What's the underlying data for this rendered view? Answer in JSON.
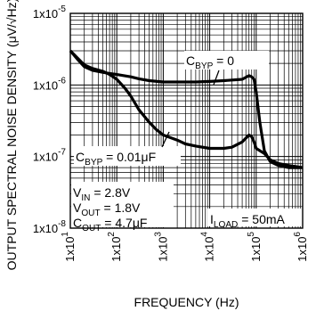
{
  "chart_data": {
    "type": "line",
    "xlabel": "FREQUENCY (Hz)",
    "ylabel": "OUTPUT SPECTRAL NOISE DENSITY (μV/√Hz)",
    "xscale": "log",
    "yscale": "log",
    "xlim": [
      10,
      1000000
    ],
    "ylim": [
      0.01,
      10
    ],
    "grid": true,
    "x_ticks": [
      {
        "base": "1x10",
        "exp": "1"
      },
      {
        "base": "1x10",
        "exp": "2"
      },
      {
        "base": "1x10",
        "exp": "3"
      },
      {
        "base": "1x10",
        "exp": "4"
      },
      {
        "base": "1x10",
        "exp": "5"
      },
      {
        "base": "1x10",
        "exp": "6"
      }
    ],
    "y_ticks": [
      {
        "base": "1x10",
        "exp": "-5"
      },
      {
        "base": "1x10",
        "exp": "-6"
      },
      {
        "base": "1x10",
        "exp": "-7"
      },
      {
        "base": "1x10",
        "exp": "-8"
      }
    ],
    "series": [
      {
        "label": {
          "main": "C",
          "sub": "BYP",
          "rest": " = 0"
        },
        "x": [
          10,
          15,
          20,
          30,
          50,
          70,
          100,
          200,
          300,
          500,
          1000,
          2000,
          5000,
          10000,
          20000,
          50000,
          70000,
          80000,
          90000,
          100000,
          120000,
          150000,
          200000,
          300000,
          500000,
          1000000
        ],
        "y": [
          3.0,
          2.2,
          1.8,
          1.6,
          1.5,
          1.45,
          1.4,
          1.3,
          1.22,
          1.15,
          1.1,
          1.1,
          1.1,
          1.12,
          1.15,
          1.2,
          1.35,
          1.3,
          1.2,
          0.8,
          0.3,
          0.12,
          0.085,
          0.075,
          0.07,
          0.07
        ]
      },
      {
        "label": {
          "main": "C",
          "sub": "BYP",
          "rest": " = 0.01μF"
        },
        "x": [
          10,
          20,
          30,
          50,
          70,
          100,
          150,
          200,
          300,
          500,
          700,
          1000,
          2000,
          3000,
          5000,
          10000,
          20000,
          30000,
          50000,
          70000,
          80000,
          90000,
          100000,
          150000,
          200000,
          300000,
          500000,
          1000000
        ],
        "y": [
          3.0,
          1.9,
          1.7,
          1.55,
          1.4,
          1.2,
          0.9,
          0.7,
          0.45,
          0.3,
          0.24,
          0.2,
          0.17,
          0.15,
          0.14,
          0.13,
          0.13,
          0.135,
          0.16,
          0.2,
          0.19,
          0.16,
          0.13,
          0.11,
          0.09,
          0.08,
          0.075,
          0.07
        ]
      }
    ],
    "annotations": [
      {
        "main": "V",
        "sub": "IN",
        "rest": " = 2.8V"
      },
      {
        "main": "V",
        "sub": "OUT",
        "rest": " = 1.8V"
      },
      {
        "main": "C",
        "sub": "OUT",
        "rest": " = 4.7μF"
      },
      {
        "main": "I",
        "sub": "LOAD",
        "rest": " = 50mA"
      }
    ]
  }
}
